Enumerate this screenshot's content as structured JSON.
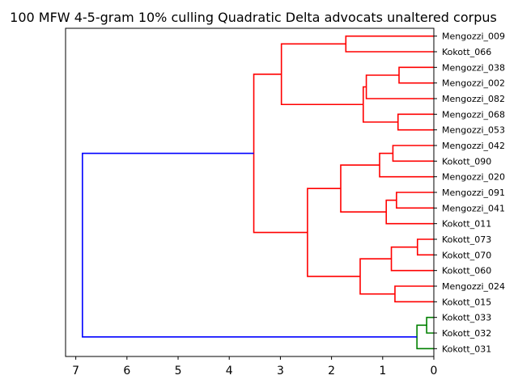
{
  "chart_data": {
    "type": "dendrogram",
    "title": "100 MFW 4-5-gram 10% culling Quadratic Delta advocats unaltered corpus",
    "orientation": "left",
    "xlabel": "",
    "ylabel": "",
    "xlim": [
      7.2,
      0
    ],
    "xticks": [
      7,
      6,
      5,
      4,
      3,
      2,
      1,
      0
    ],
    "colors": {
      "cluster_a": "#ff0000",
      "cluster_b": "#008000",
      "root": "#0000ff"
    },
    "leaves": [
      "Mengozzi_009",
      "Kokott_066",
      "Mengozzi_038",
      "Mengozzi_002",
      "Mengozzi_082",
      "Mengozzi_068",
      "Mengozzi_053",
      "Mengozzi_042",
      "Kokott_090",
      "Mengozzi_020",
      "Mengozzi_091",
      "Mengozzi_041",
      "Kokott_011",
      "Kokott_073",
      "Kokott_070",
      "Kokott_060",
      "Mengozzi_024",
      "Kokott_015",
      "Kokott_033",
      "Kokott_032",
      "Kokott_031"
    ],
    "merges": [
      {
        "id": "n1",
        "children": [
          "Mengozzi_009",
          "Kokott_066"
        ],
        "height": 1.72,
        "color": "cluster_a"
      },
      {
        "id": "n2",
        "children": [
          "Mengozzi_038",
          "Mengozzi_002"
        ],
        "height": 0.68,
        "color": "cluster_a"
      },
      {
        "id": "n3",
        "children": [
          "n2",
          "Mengozzi_082"
        ],
        "height": 1.32,
        "color": "cluster_a"
      },
      {
        "id": "n4",
        "children": [
          "Mengozzi_068",
          "Mengozzi_053"
        ],
        "height": 0.7,
        "color": "cluster_a"
      },
      {
        "id": "n5",
        "children": [
          "n3",
          "n4"
        ],
        "height": 1.38,
        "color": "cluster_a"
      },
      {
        "id": "n6",
        "children": [
          "n1",
          "n5"
        ],
        "height": 2.98,
        "color": "cluster_a"
      },
      {
        "id": "n7",
        "children": [
          "Mengozzi_042",
          "Kokott_090"
        ],
        "height": 0.8,
        "color": "cluster_a"
      },
      {
        "id": "n8",
        "children": [
          "n7",
          "Mengozzi_020"
        ],
        "height": 1.06,
        "color": "cluster_a"
      },
      {
        "id": "n9",
        "children": [
          "Mengozzi_091",
          "Mengozzi_041"
        ],
        "height": 0.73,
        "color": "cluster_a"
      },
      {
        "id": "n10",
        "children": [
          "n9",
          "Kokott_011"
        ],
        "height": 0.93,
        "color": "cluster_a"
      },
      {
        "id": "n11",
        "children": [
          "n8",
          "n10"
        ],
        "height": 1.82,
        "color": "cluster_a"
      },
      {
        "id": "n12",
        "children": [
          "Kokott_073",
          "Kokott_070"
        ],
        "height": 0.32,
        "color": "cluster_a"
      },
      {
        "id": "n13",
        "children": [
          "n12",
          "Kokott_060"
        ],
        "height": 0.83,
        "color": "cluster_a"
      },
      {
        "id": "n14",
        "children": [
          "Mengozzi_024",
          "Kokott_015"
        ],
        "height": 0.76,
        "color": "cluster_a"
      },
      {
        "id": "n15",
        "children": [
          "n13",
          "n14"
        ],
        "height": 1.44,
        "color": "cluster_a"
      },
      {
        "id": "n16",
        "children": [
          "n11",
          "n15"
        ],
        "height": 2.47,
        "color": "cluster_a"
      },
      {
        "id": "n17",
        "children": [
          "n6",
          "n16"
        ],
        "height": 3.52,
        "color": "cluster_a"
      },
      {
        "id": "n18",
        "children": [
          "Kokott_033",
          "Kokott_032"
        ],
        "height": 0.14,
        "color": "cluster_b"
      },
      {
        "id": "n19",
        "children": [
          "n18",
          "Kokott_031"
        ],
        "height": 0.33,
        "color": "cluster_b"
      },
      {
        "id": "n20",
        "children": [
          "n17",
          "n19"
        ],
        "height": 6.87,
        "color": "root"
      }
    ]
  }
}
